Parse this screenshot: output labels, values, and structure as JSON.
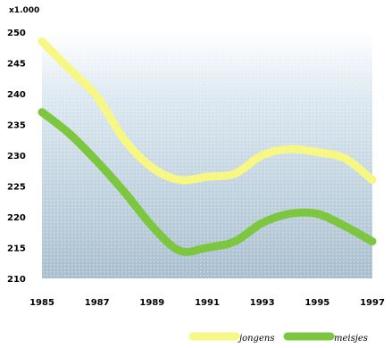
{
  "chart_data": {
    "type": "line",
    "title": "",
    "xlabel": "",
    "ylabel": "",
    "unit_label": "x1.000",
    "x": [
      1985,
      1986,
      1987,
      1988,
      1989,
      1990,
      1991,
      1992,
      1993,
      1994,
      1995,
      1996,
      1997
    ],
    "x_tick_labels": [
      "1985",
      "1987",
      "1989",
      "1991",
      "1993",
      "1995",
      "1997"
    ],
    "y_tick_labels": [
      "210",
      "215",
      "220",
      "225",
      "230",
      "235",
      "240",
      "245",
      "250"
    ],
    "xlim": [
      1985,
      1997
    ],
    "ylim": [
      210,
      250
    ],
    "grid": false,
    "legend_position": "bottom-right",
    "series": [
      {
        "name": "jongens",
        "color": "#f7f783",
        "values": [
          248.5,
          244.0,
          239.5,
          232.5,
          228.0,
          226.0,
          226.5,
          227.0,
          230.0,
          231.0,
          230.5,
          229.5,
          226.0
        ]
      },
      {
        "name": "meisjes",
        "color": "#7dc63f",
        "values": [
          237.0,
          233.5,
          229.0,
          224.0,
          218.5,
          214.5,
          215.0,
          216.0,
          219.0,
          220.5,
          220.5,
          218.5,
          216.0
        ]
      }
    ]
  }
}
